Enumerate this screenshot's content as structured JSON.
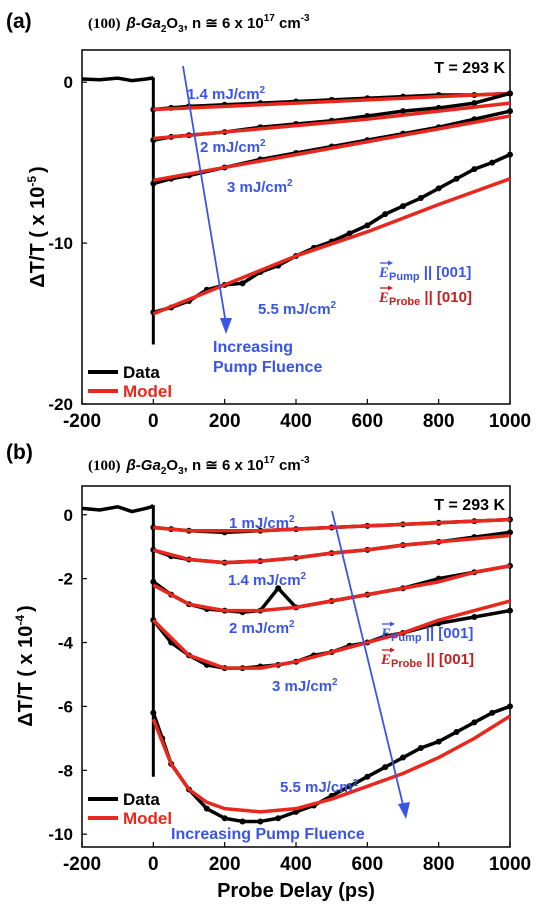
{
  "figure": {
    "shared_xlabel": "Probe Delay (ps)"
  },
  "chart_data": [
    {
      "panel_label": "(a)",
      "title": {
        "orientation": "(100)",
        "material": "β-Ga",
        "material_sub1": "2",
        "material_mid": "O",
        "material_sub2": "3",
        "density": ", n ≅ 6 x 10",
        "density_exp": "17",
        "density_unit": " cm",
        "density_unit_exp": "-3"
      },
      "type": "line",
      "xlim": [
        -200,
        1000
      ],
      "ylim": [
        -20,
        2
      ],
      "xticks": [
        "-200",
        "0",
        "200",
        "400",
        "600",
        "800",
        "1000"
      ],
      "yticks": [
        "0",
        "-10",
        "-20"
      ],
      "ylabel": "ΔT/T ( x 10",
      "ylabel_exp": "-5",
      "ylabel_tail": ")",
      "temperature_label": "T = 293 K",
      "legend": {
        "placement": "bottom-left",
        "entries": [
          "Data",
          "Model"
        ]
      },
      "colors": {
        "data": "#000000",
        "model": "#e8281e",
        "annotation": "#3a55e6",
        "probe": "#c41e1e"
      },
      "polarization": {
        "pump_label": "E",
        "pump_sub": "Pump",
        "pump_value": " || [001]",
        "probe_label": "E",
        "probe_sub": "Probe",
        "probe_value": " || [010]"
      },
      "arrow_label": [
        "Increasing",
        "Pump Fluence"
      ],
      "series": [
        {
          "fluence_label": "1.4 mJ/cm",
          "fluence_exp": "2",
          "data": {
            "x": [
              0,
              50,
              100,
              200,
              300,
              400,
              500,
              600,
              700,
              800,
              900,
              1000
            ],
            "y": [
              -1.7,
              -1.6,
              -1.5,
              -1.4,
              -1.3,
              -1.2,
              -1.1,
              -1.0,
              -0.9,
              -0.8,
              -0.8,
              -0.7
            ]
          },
          "model": {
            "x": [
              0,
              200,
              400,
              600,
              800,
              1000
            ],
            "y": [
              -1.7,
              -1.5,
              -1.3,
              -1.1,
              -0.9,
              -0.7
            ]
          }
        },
        {
          "fluence_label": "2 mJ/cm",
          "fluence_exp": "2",
          "data": {
            "x": [
              0,
              50,
              100,
              200,
              300,
              400,
              500,
              600,
              700,
              800,
              900,
              1000
            ],
            "y": [
              -3.6,
              -3.4,
              -3.3,
              -3.1,
              -2.8,
              -2.6,
              -2.4,
              -2.1,
              -1.8,
              -1.6,
              -1.3,
              -0.7
            ]
          },
          "model": {
            "x": [
              0,
              200,
              400,
              600,
              800,
              1000
            ],
            "y": [
              -3.5,
              -3.1,
              -2.7,
              -2.3,
              -1.8,
              -1.3
            ]
          }
        },
        {
          "fluence_label": "3 mJ/cm",
          "fluence_exp": "2",
          "data": {
            "x": [
              0,
              50,
              100,
              200,
              300,
              400,
              500,
              600,
              700,
              800,
              900,
              1000
            ],
            "y": [
              -6.3,
              -6.0,
              -5.8,
              -5.3,
              -4.8,
              -4.4,
              -4.0,
              -3.6,
              -3.2,
              -2.8,
              -2.3,
              -1.8
            ]
          },
          "model": {
            "x": [
              0,
              200,
              400,
              600,
              800,
              1000
            ],
            "y": [
              -6.1,
              -5.3,
              -4.5,
              -3.7,
              -2.9,
              -2.1
            ]
          }
        },
        {
          "fluence_label": "5.5 mJ/cm",
          "fluence_exp": "2",
          "data": {
            "x": [
              0,
              50,
              100,
              150,
              200,
              250,
              300,
              350,
              400,
              450,
              500,
              550,
              600,
              650,
              700,
              750,
              800,
              850,
              900,
              950,
              1000
            ],
            "y": [
              -14.3,
              -14.0,
              -13.6,
              -12.9,
              -12.6,
              -12.5,
              -11.8,
              -11.4,
              -10.8,
              -10.3,
              -9.9,
              -9.4,
              -8.9,
              -8.2,
              -7.7,
              -7.2,
              -6.6,
              -6.0,
              -5.4,
              -5.0,
              -4.5
            ]
          },
          "model": {
            "x": [
              0,
              200,
              400,
              600,
              800,
              1000
            ],
            "y": [
              -14.4,
              -12.6,
              -10.8,
              -9.3,
              -7.6,
              -6.0
            ]
          }
        }
      ]
    },
    {
      "panel_label": "(b)",
      "title": {
        "orientation": "(100)",
        "material": "β-Ga",
        "material_sub1": "2",
        "material_mid": "O",
        "material_sub2": "3",
        "density": ", n ≅ 6 x 10",
        "density_exp": "17",
        "density_unit": " cm",
        "density_unit_exp": "-3"
      },
      "type": "line",
      "xlim": [
        -200,
        1000
      ],
      "ylim": [
        -10.4,
        0.9
      ],
      "xticks": [
        "-200",
        "0",
        "200",
        "400",
        "600",
        "800",
        "1000"
      ],
      "yticks": [
        "0",
        "-2",
        "-4",
        "-6",
        "-8",
        "-10"
      ],
      "ylabel": "ΔT/T ( x 10",
      "ylabel_exp": "-4",
      "ylabel_tail": ")",
      "xlabel": "Probe Delay (ps)",
      "temperature_label": "T = 293 K",
      "legend": {
        "placement": "bottom-left",
        "entries": [
          "Data",
          "Model"
        ]
      },
      "colors": {
        "data": "#000000",
        "model": "#e8281e",
        "annotation": "#3a55e6",
        "probe": "#c41e1e"
      },
      "polarization": {
        "pump_label": "E",
        "pump_sub": "Pump",
        "pump_value": " || [001]",
        "probe_label": "E",
        "probe_sub": "Probe",
        "probe_value": " || [001]"
      },
      "arrow_label": [
        "Increasing Pump Fluence"
      ],
      "series": [
        {
          "fluence_label": "1 mJ/cm",
          "fluence_exp": "2",
          "data": {
            "x": [
              0,
              50,
              100,
              200,
              300,
              400,
              500,
              600,
              700,
              800,
              900,
              1000
            ],
            "y": [
              -0.4,
              -0.45,
              -0.5,
              -0.55,
              -0.5,
              -0.45,
              -0.4,
              -0.35,
              -0.3,
              -0.25,
              -0.2,
              -0.15
            ]
          },
          "model": {
            "x": [
              0,
              100,
              200,
              300,
              400,
              500,
              600,
              700,
              800,
              900,
              1000
            ],
            "y": [
              -0.4,
              -0.5,
              -0.5,
              -0.5,
              -0.45,
              -0.4,
              -0.35,
              -0.3,
              -0.25,
              -0.2,
              -0.15
            ]
          }
        },
        {
          "fluence_label": "1.4 mJ/cm",
          "fluence_exp": "2",
          "data": {
            "x": [
              0,
              50,
              100,
              200,
              300,
              400,
              500,
              600,
              700,
              800,
              900,
              1000
            ],
            "y": [
              -1.1,
              -1.3,
              -1.4,
              -1.5,
              -1.45,
              -1.35,
              -1.2,
              -1.1,
              -0.95,
              -0.85,
              -0.7,
              -0.55
            ]
          },
          "model": {
            "x": [
              0,
              100,
              200,
              300,
              400,
              500,
              600,
              700,
              800,
              900,
              1000
            ],
            "y": [
              -1.1,
              -1.4,
              -1.5,
              -1.45,
              -1.35,
              -1.2,
              -1.1,
              -0.95,
              -0.85,
              -0.75,
              -0.65
            ]
          }
        },
        {
          "fluence_label": "2 mJ/cm",
          "fluence_exp": "2",
          "data": {
            "x": [
              0,
              50,
              100,
              150,
              200,
              250,
              300,
              350,
              400,
              500,
              600,
              700,
              800,
              900,
              1000
            ],
            "y": [
              -2.1,
              -2.5,
              -2.8,
              -2.95,
              -3.0,
              -3.05,
              -3.0,
              -2.3,
              -2.9,
              -2.7,
              -2.5,
              -2.3,
              -2.0,
              -1.8,
              -1.6
            ]
          },
          "model": {
            "x": [
              0,
              100,
              200,
              300,
              400,
              500,
              600,
              700,
              800,
              900,
              1000
            ],
            "y": [
              -2.2,
              -2.8,
              -3.0,
              -3.0,
              -2.9,
              -2.7,
              -2.5,
              -2.3,
              -2.1,
              -1.8,
              -1.6
            ]
          }
        },
        {
          "fluence_label": "3 mJ/cm",
          "fluence_exp": "2",
          "data": {
            "x": [
              0,
              50,
              100,
              150,
              200,
              250,
              300,
              350,
              400,
              450,
              500,
              550,
              600,
              650,
              700,
              800,
              900,
              1000
            ],
            "y": [
              -3.3,
              -4.0,
              -4.4,
              -4.7,
              -4.8,
              -4.8,
              -4.75,
              -4.7,
              -4.6,
              -4.4,
              -4.3,
              -4.1,
              -4.0,
              -3.8,
              -3.7,
              -3.4,
              -3.2,
              -3.0
            ]
          },
          "model": {
            "x": [
              0,
              100,
              200,
              300,
              400,
              500,
              600,
              700,
              800,
              900,
              1000
            ],
            "y": [
              -3.3,
              -4.4,
              -4.8,
              -4.8,
              -4.6,
              -4.3,
              -4.0,
              -3.7,
              -3.3,
              -3.0,
              -2.7
            ]
          }
        },
        {
          "fluence_label": "5.5 mJ/cm",
          "fluence_exp": "2",
          "data": {
            "x": [
              0,
              25,
              50,
              100,
              150,
              200,
              250,
              300,
              350,
              400,
              450,
              500,
              550,
              600,
              650,
              700,
              750,
              800,
              850,
              900,
              950,
              1000
            ],
            "y": [
              -6.2,
              -7.0,
              -7.8,
              -8.6,
              -9.2,
              -9.5,
              -9.6,
              -9.6,
              -9.5,
              -9.3,
              -9.1,
              -8.8,
              -8.5,
              -8.2,
              -7.9,
              -7.6,
              -7.3,
              -7.1,
              -6.8,
              -6.5,
              -6.2,
              -6.0
            ]
          },
          "model": {
            "x": [
              0,
              50,
              100,
              150,
              200,
              300,
              400,
              500,
              600,
              700,
              800,
              900,
              1000
            ],
            "y": [
              -6.4,
              -7.8,
              -8.6,
              -9.0,
              -9.2,
              -9.3,
              -9.2,
              -8.9,
              -8.5,
              -8.1,
              -7.6,
              -7.0,
              -6.3
            ]
          }
        }
      ]
    }
  ]
}
